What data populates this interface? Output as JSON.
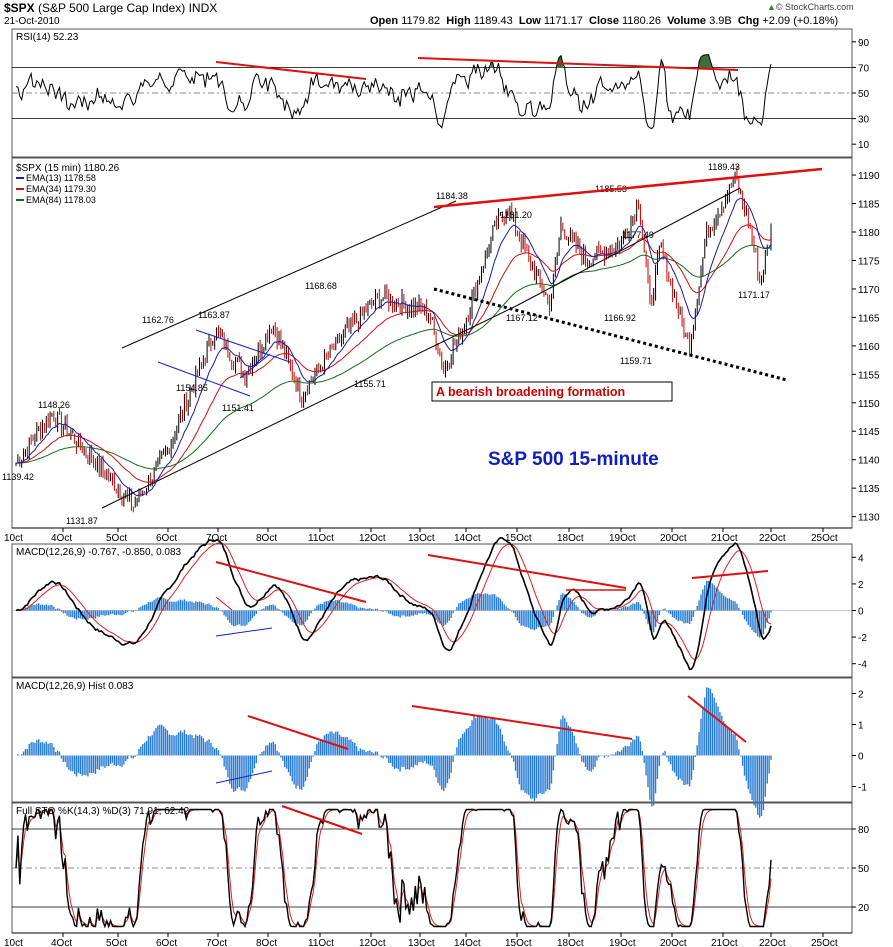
{
  "header": {
    "symbol": "$SPX",
    "name": "(S&P 500 Large Cap Index)",
    "exchange": "INDX",
    "date": "21-Oct-2010",
    "open_label": "Open",
    "open": "1179.82",
    "high_label": "High",
    "high": "1189.43",
    "low_label": "Low",
    "low": "1171.17",
    "close_label": "Close",
    "close": "1180.26",
    "volume_label": "Volume",
    "volume": "3.9B",
    "chg_label": "Chg",
    "chg": "+2.09 (+0.18%)",
    "watermark": "© StockCharts.com",
    "watermark_marker": "▲"
  },
  "colors": {
    "price_line": "#000000",
    "ema13": "#1c1ca8",
    "ema34": "#cc1111",
    "ema84": "#1a6b1a",
    "trend_red": "#dd1111",
    "macd_hist": "#2a7dd6",
    "rsi_fill": "#3a6e3a",
    "grid": "#888888",
    "annotation_blue": "#1020c8"
  },
  "chart_data": {
    "type": "line",
    "title": "S&P 500 15-minute",
    "annotation": "A bearish broadening formation",
    "x_dates": [
      "4Oct",
      "5Oct",
      "6Oct",
      "7Oct",
      "8Oct",
      "11Oct",
      "12Oct",
      "13Oct",
      "14Oct",
      "15Oct",
      "18Oct",
      "19Oct",
      "20Oct",
      "21Oct",
      "22Oct",
      "25Oct"
    ],
    "x_first_label": "10ct",
    "price_panel": {
      "label": "$SPX (15 min) 1180.26",
      "legend": [
        {
          "name": "EMA(13) 1178.58",
          "color": "#1c1ca8"
        },
        {
          "name": "EMA(34) 1179.30",
          "color": "#cc1111"
        },
        {
          "name": "EMA(84) 1178.03",
          "color": "#1a6b1a"
        }
      ],
      "ylim": [
        1128,
        1193
      ],
      "ticks": [
        1130,
        1135,
        1140,
        1145,
        1150,
        1155,
        1160,
        1165,
        1170,
        1175,
        1180,
        1185,
        1190
      ],
      "key_points": [
        {
          "t": 0,
          "v": 1139.42
        },
        {
          "t": 1,
          "v": 1148.26
        },
        {
          "t": 3.3,
          "v": 1131.87
        },
        {
          "t": 4.2,
          "v": 1141
        },
        {
          "t": 5.6,
          "v": 1162.76
        },
        {
          "t": 6.4,
          "v": 1154.85
        },
        {
          "t": 7.2,
          "v": 1163.87
        },
        {
          "t": 8.0,
          "v": 1151.41
        },
        {
          "t": 9.2,
          "v": 1162
        },
        {
          "t": 10.2,
          "v": 1168.68
        },
        {
          "t": 11.6,
          "v": 1166
        },
        {
          "t": 12.0,
          "v": 1155.71
        },
        {
          "t": 12.6,
          "v": 1164
        },
        {
          "t": 13.4,
          "v": 1180
        },
        {
          "t": 13.8,
          "v": 1184.38
        },
        {
          "t": 14.4,
          "v": 1175
        },
        {
          "t": 15.0,
          "v": 1167.12
        },
        {
          "t": 15.3,
          "v": 1181.2
        },
        {
          "t": 16.0,
          "v": 1175
        },
        {
          "t": 17.0,
          "v": 1178
        },
        {
          "t": 17.5,
          "v": 1185.53
        },
        {
          "t": 17.8,
          "v": 1166.92
        },
        {
          "t": 18.1,
          "v": 1177.49
        },
        {
          "t": 18.9,
          "v": 1159.71
        },
        {
          "t": 19.4,
          "v": 1180
        },
        {
          "t": 20.2,
          "v": 1189.43
        },
        {
          "t": 20.6,
          "v": 1181
        },
        {
          "t": 20.9,
          "v": 1171.17
        },
        {
          "t": 21.2,
          "v": 1180.26
        }
      ],
      "value_labels": [
        "1139.42",
        "1148.26",
        "1131.87",
        "1162.76",
        "1154.85",
        "1163.87",
        "1151.41",
        "1168.68",
        "1155.71",
        "1184.38",
        "1181.20",
        "1167.12",
        "1185.53",
        "1177.49",
        "1166.92",
        "1159.71",
        "1189.43",
        "1171.17"
      ]
    },
    "rsi_panel": {
      "label": "RSI(14) 52.23",
      "ylim": [
        0,
        100
      ],
      "ticks": [
        10,
        30,
        50,
        70,
        90
      ]
    },
    "macd_panel": {
      "label": "MACD(12,26,9) -0.767, -0.850, 0.083",
      "ylim": [
        -5,
        5
      ],
      "ticks": [
        -4,
        -2,
        0,
        2,
        4
      ]
    },
    "hist_panel": {
      "label": "MACD(12,26,9) Hist 0.083",
      "ylim": [
        -1.5,
        2.5
      ],
      "ticks": [
        -1,
        0,
        1,
        2
      ]
    },
    "sto_panel": {
      "label": "Full STO %K(14,3) %D(3) 71.91, 62.42",
      "ylim": [
        0,
        100
      ],
      "ticks": [
        20,
        50,
        80
      ]
    }
  }
}
